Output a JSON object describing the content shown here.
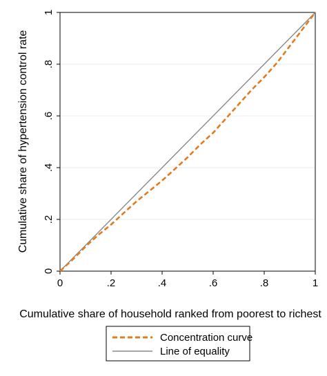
{
  "chart_data": {
    "type": "line",
    "xlabel": "Cumulative share of household ranked from poorest to richest",
    "ylabel": "Cumulative share of hypertension control rate",
    "xlim": [
      0,
      1
    ],
    "ylim": [
      0,
      1
    ],
    "x_ticks": [
      "0",
      ".2",
      ".4",
      ".6",
      ".8",
      "1"
    ],
    "y_ticks": [
      "0",
      ".2",
      ".4",
      ".6",
      ".8",
      "1"
    ],
    "grid": true,
    "legend_position": "bottom",
    "series": [
      {
        "name": "Concentration curve",
        "style": "dashed",
        "color": "#e07b20",
        "x": [
          0,
          0.05,
          0.1,
          0.15,
          0.2,
          0.25,
          0.3,
          0.35,
          0.4,
          0.45,
          0.5,
          0.55,
          0.6,
          0.65,
          0.7,
          0.75,
          0.8,
          0.85,
          0.9,
          0.95,
          1
        ],
        "y": [
          0,
          0.045,
          0.095,
          0.14,
          0.18,
          0.225,
          0.27,
          0.31,
          0.35,
          0.395,
          0.44,
          0.49,
          0.535,
          0.59,
          0.645,
          0.7,
          0.75,
          0.805,
          0.87,
          0.935,
          1
        ]
      },
      {
        "name": "Line of equality",
        "style": "solid",
        "color": "#888888",
        "x": [
          0,
          1
        ],
        "y": [
          0,
          1
        ]
      }
    ]
  }
}
